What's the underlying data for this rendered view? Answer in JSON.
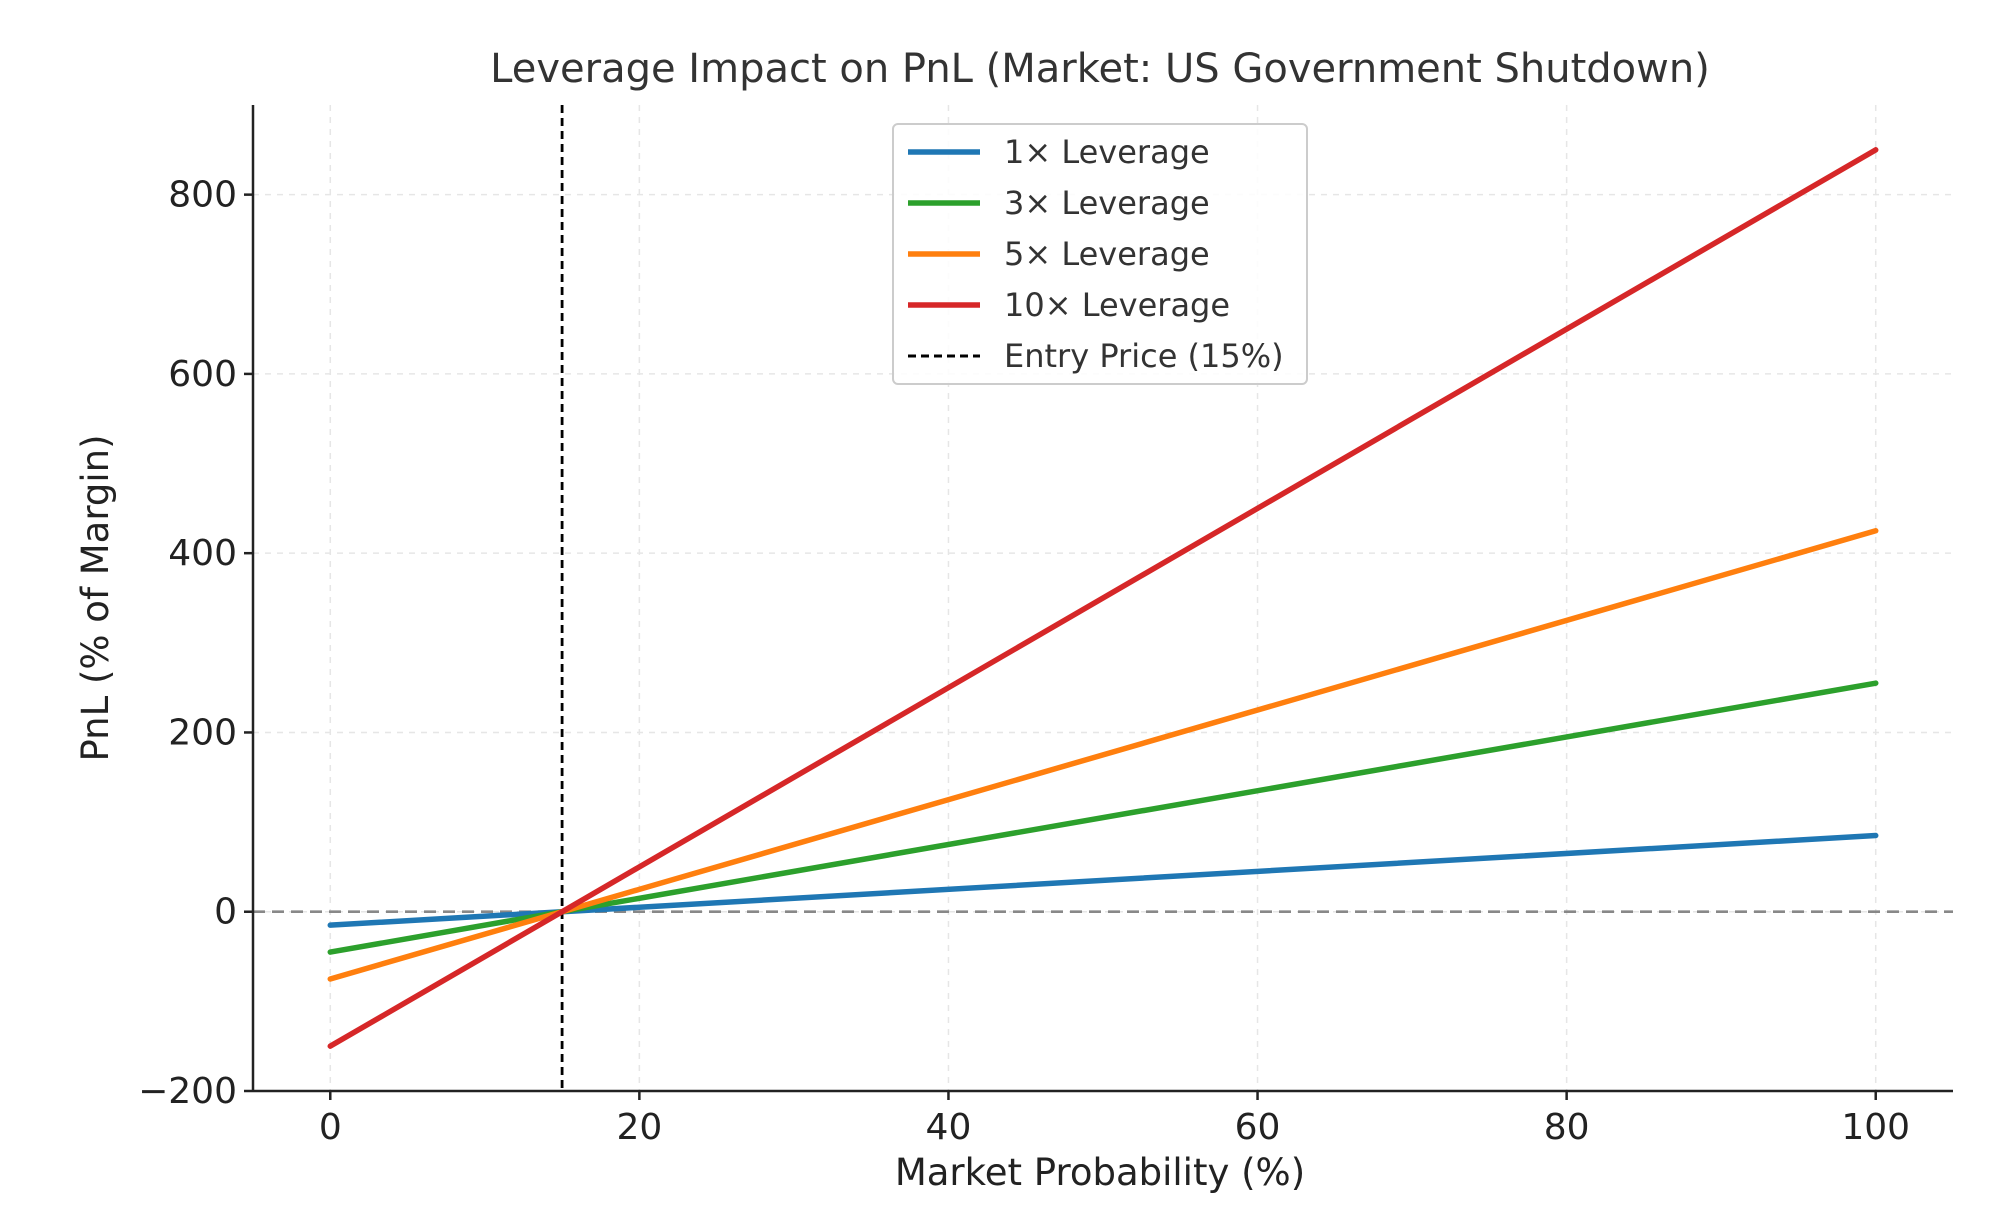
{
  "chart_data": {
    "type": "line",
    "title": "Leverage Impact on PnL (Market: US Government Shutdown)",
    "xlabel": "Market Probability (%)",
    "ylabel": "PnL (% of Margin)",
    "xlim": [
      -5,
      105
    ],
    "ylim": [
      -200,
      900
    ],
    "xticks": [
      0,
      20,
      40,
      60,
      80,
      100
    ],
    "yticks": [
      -200,
      0,
      200,
      400,
      600,
      800
    ],
    "xtick_labels": [
      "0",
      "20",
      "40",
      "60",
      "80",
      "100"
    ],
    "ytick_labels": [
      "−200",
      "0",
      "200",
      "400",
      "600",
      "800"
    ],
    "grid": true,
    "legend_position": "upper-center",
    "x": [
      0,
      15,
      100
    ],
    "series": [
      {
        "name": "1× Leverage",
        "color": "#1f77b4",
        "values": [
          -15,
          0,
          85
        ]
      },
      {
        "name": "3× Leverage",
        "color": "#2ca02c",
        "values": [
          -45,
          0,
          255
        ]
      },
      {
        "name": "5× Leverage",
        "color": "#ff7f0e",
        "values": [
          -75,
          0,
          425
        ]
      },
      {
        "name": "10× Leverage",
        "color": "#d62728",
        "values": [
          -150,
          0,
          850
        ]
      }
    ],
    "reference_lines": [
      {
        "name": "Entry Price (15%)",
        "orientation": "vertical",
        "value": 15,
        "color": "#000000",
        "style": "dashed",
        "in_legend": true
      },
      {
        "orientation": "horizontal",
        "value": 0,
        "color": "#888888",
        "style": "dashed",
        "in_legend": false
      }
    ]
  }
}
